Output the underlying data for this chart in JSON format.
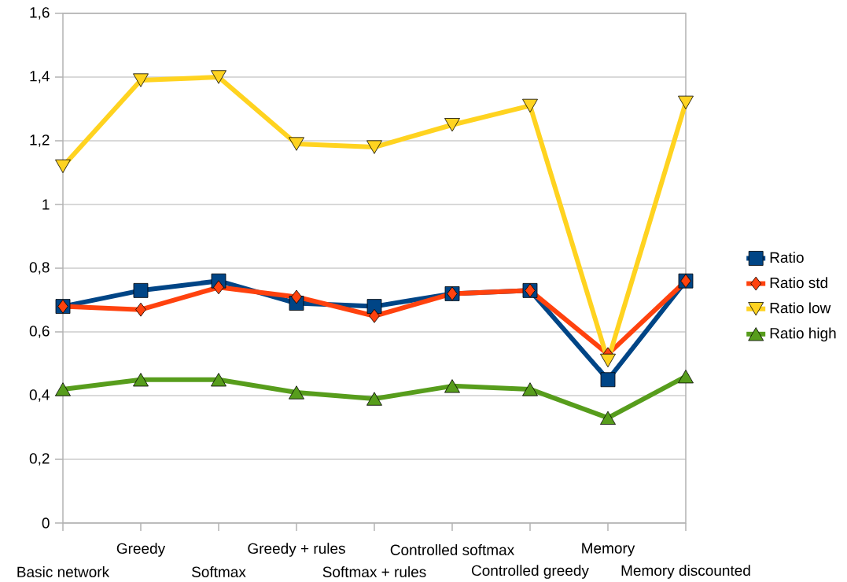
{
  "chart_data": {
    "type": "line",
    "categories": [
      "Basic network",
      "Greedy",
      "Softmax",
      "Greedy + rules",
      "Softmax + rules",
      "Controlled softmax",
      "Controlled greedy",
      "Memory",
      "Memory discounted"
    ],
    "series": [
      {
        "name": "Ratio",
        "color": "#004586",
        "marker": "square",
        "values": [
          0.68,
          0.73,
          0.76,
          0.69,
          0.68,
          0.72,
          0.73,
          0.45,
          0.76
        ]
      },
      {
        "name": "Ratio std",
        "color": "#ff420e",
        "marker": "diamond",
        "values": [
          0.68,
          0.67,
          0.74,
          0.71,
          0.65,
          0.72,
          0.73,
          0.53,
          0.76
        ]
      },
      {
        "name": "Ratio low",
        "color": "#ffd320",
        "marker": "triangle-down",
        "values": [
          1.12,
          1.39,
          1.4,
          1.19,
          1.18,
          1.25,
          1.31,
          0.51,
          1.32
        ]
      },
      {
        "name": "Ratio high",
        "color": "#579d1c",
        "marker": "triangle",
        "values": [
          0.42,
          0.45,
          0.45,
          0.41,
          0.39,
          0.43,
          0.42,
          0.33,
          0.46
        ]
      }
    ],
    "ylim": [
      0,
      1.6
    ],
    "yticks": [
      0,
      {
        "value": 0.2,
        "label": "0,2"
      },
      {
        "value": 0.4,
        "label": "0,4"
      },
      {
        "value": 0.6,
        "label": "0,6"
      },
      {
        "value": 0.8,
        "label": "0,8"
      },
      1,
      {
        "value": 1.2,
        "label": "1,2"
      },
      {
        "value": 1.4,
        "label": "1,4"
      },
      {
        "value": 1.6,
        "label": "1,6"
      }
    ],
    "grid": "y",
    "legend": "right",
    "line_style": "solid"
  }
}
